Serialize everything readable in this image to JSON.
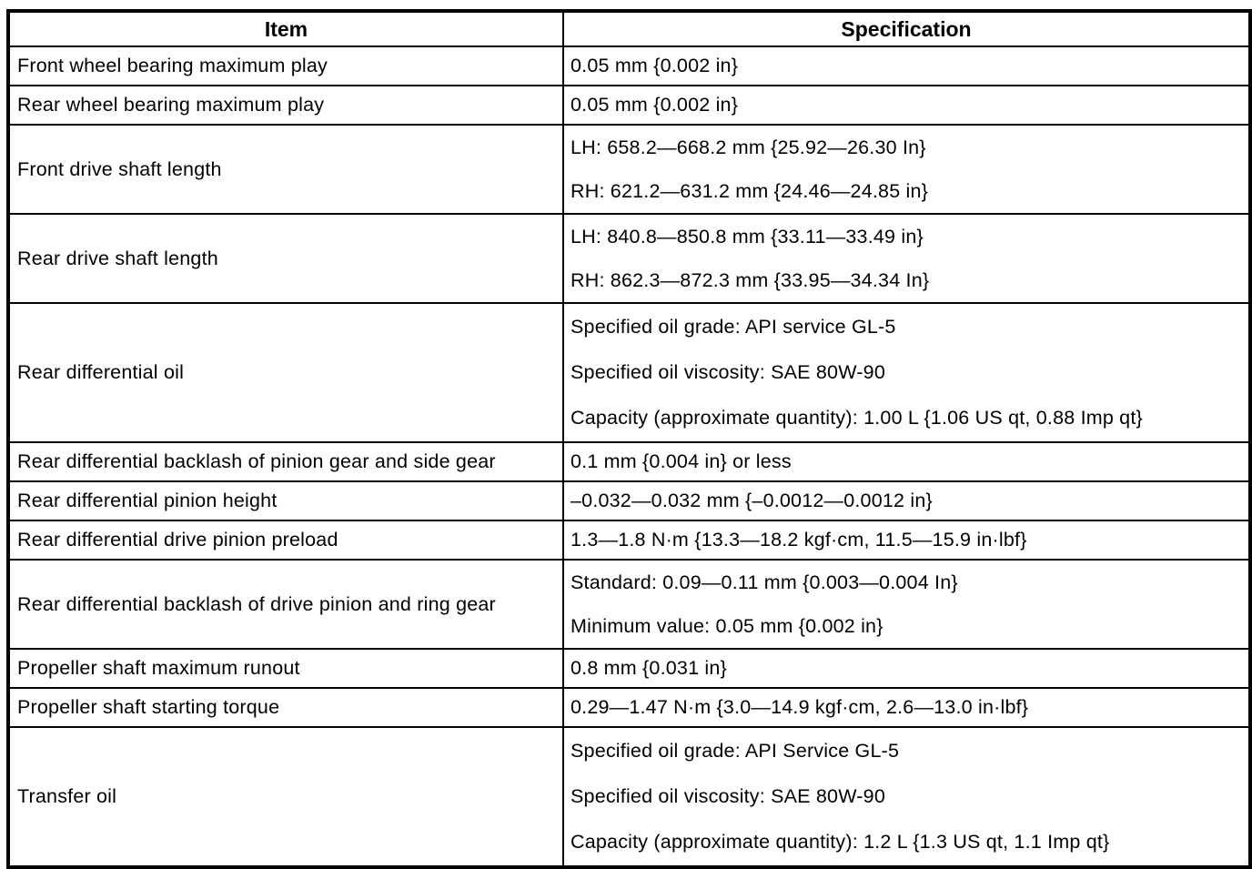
{
  "table": {
    "headers": {
      "item": "Item",
      "specification": "Specification"
    },
    "rows": [
      {
        "item": "Front wheel bearing maximum play",
        "spec": [
          "0.05 mm {0.002 in}"
        ]
      },
      {
        "item": "Rear wheel bearing maximum play",
        "spec": [
          "0.05 mm {0.002 in}"
        ]
      },
      {
        "item": "Front drive shaft length",
        "spec": [
          "LH: 658.2—668.2 mm {25.92—26.30 In}",
          "RH: 621.2—631.2 mm {24.46—24.85 in}"
        ]
      },
      {
        "item": "Rear drive shaft length",
        "spec": [
          "LH: 840.8—850.8 mm {33.11—33.49 in}",
          "RH: 862.3—872.3 mm {33.95—34.34 In}"
        ]
      },
      {
        "item": "Rear differential oil",
        "spec": [
          "Specified oil grade: API service GL-5",
          "Specified oil viscosity: SAE 80W-90",
          "Capacity (approximate quantity): 1.00 L {1.06 US qt, 0.88 Imp qt}"
        ]
      },
      {
        "item": "Rear differential backlash of pinion gear and side gear",
        "spec": [
          "0.1 mm {0.004 in} or less"
        ]
      },
      {
        "item": "Rear differential pinion height",
        "spec": [
          "–0.032—0.032 mm {–0.0012—0.0012 in}"
        ]
      },
      {
        "item": "Rear differential drive pinion preload",
        "spec": [
          "1.3—1.8 N·m {13.3—18.2 kgf·cm, 11.5—15.9 in·lbf}"
        ]
      },
      {
        "item": "Rear differential backlash of drive pinion and ring gear",
        "spec": [
          "Standard: 0.09—0.11 mm {0.003—0.004 In}",
          "Minimum value: 0.05 mm {0.002 in}"
        ]
      },
      {
        "item": "Propeller shaft maximum runout",
        "spec": [
          "0.8 mm {0.031 in}"
        ]
      },
      {
        "item": "Propeller shaft starting torque",
        "spec": [
          "0.29—1.47 N·m {3.0—14.9 kgf·cm, 2.6—13.0 in·lbf}"
        ]
      },
      {
        "item": "Transfer oil",
        "spec": [
          "Specified oil grade: API Service GL-5",
          "Specified oil viscosity: SAE 80W-90",
          "Capacity (approximate quantity): 1.2 L {1.3 US qt, 1.1 Imp qt}"
        ]
      }
    ]
  }
}
